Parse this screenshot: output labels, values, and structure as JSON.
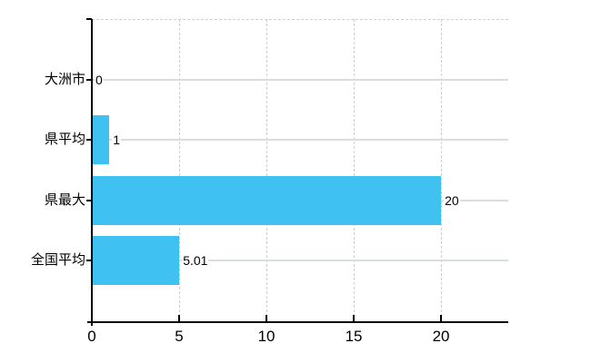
{
  "chart_data": {
    "type": "bar",
    "orientation": "horizontal",
    "title": "",
    "xlabel": "",
    "ylabel": "",
    "categories": [
      "大洲市",
      "県平均",
      "県最大",
      "全国平均"
    ],
    "values": [
      0,
      1,
      20,
      5.01
    ],
    "value_labels": [
      "0",
      "1",
      "20",
      "5.01"
    ],
    "x_ticks": [
      0,
      5,
      10,
      15,
      20
    ],
    "x_tick_labels": [
      "0",
      "5",
      "10",
      "15",
      "20"
    ],
    "xlim": [
      0,
      23.85
    ],
    "legend": "none",
    "grid": {
      "horizontal": "solid",
      "vertical": "dashed",
      "top_border": "dashed"
    },
    "colors": {
      "bar": "#3fc1f2",
      "axis": "#000000",
      "horizontal_grid": "#d8ded8",
      "vertical_grid": "#cfcfcf",
      "text": "#000000",
      "background": "#ffffff"
    }
  }
}
